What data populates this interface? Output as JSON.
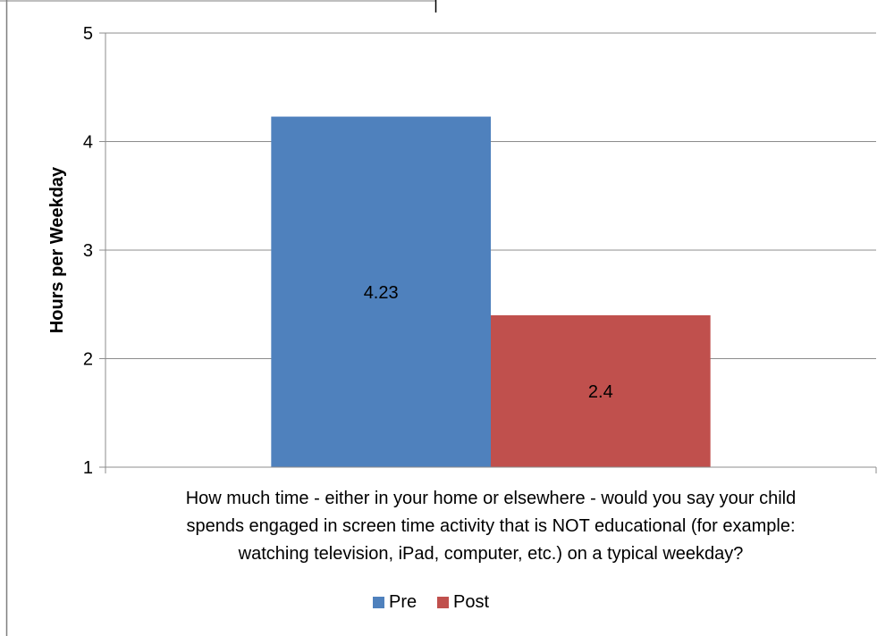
{
  "chart_data": {
    "type": "bar",
    "categories": [
      "How much time - either in your home or elsewhere - would you say your child spends engaged in screen time activity that is NOT educational (for example: watching television, iPad, computer, etc.) on a typical weekday?"
    ],
    "category_label_lines": [
      "How much time - either in your home or elsewhere - would you say your child",
      "spends engaged in screen time activity that is NOT educational (for example:",
      "watching television, iPad, computer, etc.) on a typical weekday?"
    ],
    "series": [
      {
        "name": "Pre",
        "values": [
          4.23
        ],
        "color": "#4F81BD",
        "label": "4.23"
      },
      {
        "name": "Post",
        "values": [
          2.4
        ],
        "color": "#C0504D",
        "label": "2.4"
      }
    ],
    "title": "",
    "xlabel": "",
    "ylabel": "Hours per Weekday",
    "ylim": [
      1,
      5
    ],
    "yticks": [
      "1",
      "2",
      "3",
      "4",
      "5"
    ],
    "grid": true,
    "legend": "bottom"
  }
}
